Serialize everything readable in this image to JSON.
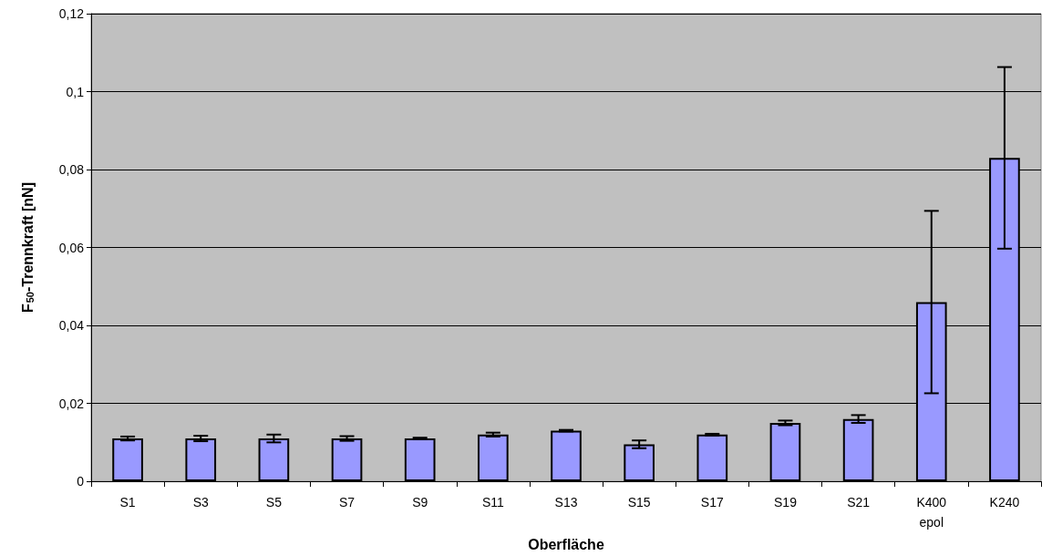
{
  "chart_data": {
    "type": "bar",
    "xlabel": "Oberfläche",
    "ylabel": "F$_{50}$-Trennkraft [nN]",
    "categories": [
      "S1",
      "S3",
      "S5",
      "S7",
      "S9",
      "S11",
      "S13",
      "S15",
      "S17",
      "S19",
      "S21",
      "K400\nepol",
      "K240"
    ],
    "series": [
      {
        "color": "#9999ff",
        "values": [
          0.011,
          0.011,
          0.011,
          0.011,
          0.011,
          0.012,
          0.013,
          0.0095,
          0.012,
          0.015,
          0.016,
          0.046,
          0.083
        ],
        "errors": [
          0.0005,
          0.0007,
          0.001,
          0.0006,
          0.0002,
          0.0005,
          0.0002,
          0.001,
          0.0002,
          0.0006,
          0.001,
          0.0234,
          0.0233
        ]
      }
    ],
    "ylim": [
      0,
      0.12
    ],
    "yticks": [
      {
        "value": 0,
        "label": "0"
      },
      {
        "value": 0.02,
        "label": "0,02"
      },
      {
        "value": 0.04,
        "label": "0,04"
      },
      {
        "value": 0.06,
        "label": "0,06"
      },
      {
        "value": 0.08,
        "label": "0,08"
      },
      {
        "value": 0.1,
        "label": "0,1"
      },
      {
        "value": 0.12,
        "label": "0,12"
      }
    ],
    "grid": "y",
    "legend": false
  }
}
